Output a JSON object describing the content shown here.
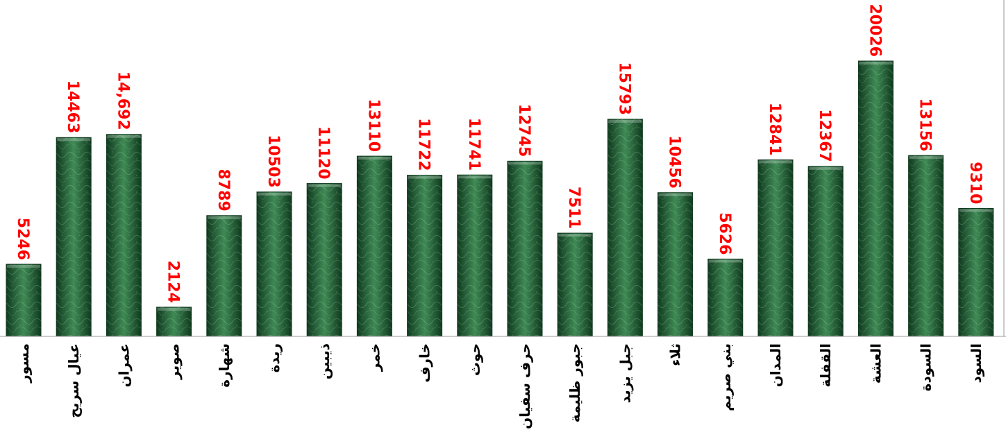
{
  "chart_data": {
    "type": "bar",
    "categories": [
      "مسور",
      "عيال سريح",
      "عمران",
      "صوير",
      "شهارة",
      "ريدة",
      "ذيبين",
      "خمر",
      "خارف",
      "حوث",
      "حرف سفيان",
      "جبور ظليمة",
      "جبل يزيد",
      "ثلاء",
      "بني صريم",
      "المدان",
      "القفلة",
      "العشة",
      "السودة",
      "السود"
    ],
    "values": [
      5246,
      14463,
      14692,
      2124,
      8789,
      10503,
      11120,
      13110,
      11722,
      11741,
      12745,
      7511,
      15793,
      10456,
      5626,
      12841,
      12367,
      20026,
      13156,
      9310
    ],
    "data_labels": [
      "5246",
      "14463",
      "14,692",
      "2124",
      "8789",
      "10503",
      "11120",
      "13110",
      "11722",
      "11741",
      "12745",
      "7511",
      "15793",
      "10456",
      "5626",
      "12841",
      "12367",
      "20026",
      "13156",
      "9310"
    ],
    "title": "",
    "xlabel": "",
    "ylabel": "",
    "ylim": [
      0,
      21000
    ],
    "grid": false,
    "legend": "none",
    "colors": {
      "bar_fill": "#1f5a33",
      "bar_fill_dark": "#0f3a1e",
      "bar_fill_light": "#3f8a55",
      "value_label": "#ff0000",
      "category_label": "#000000",
      "axis": "#999999"
    }
  }
}
